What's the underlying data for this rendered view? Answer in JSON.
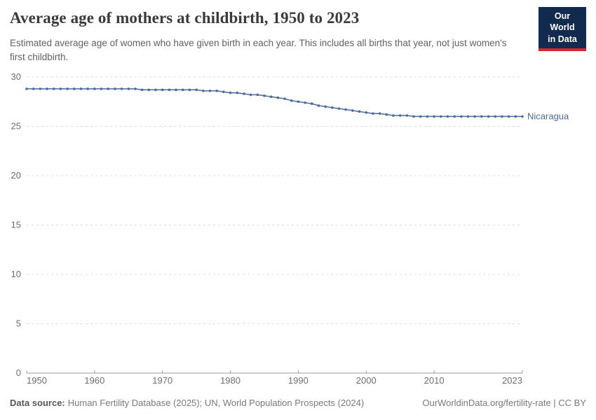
{
  "header": {
    "title": "Average age of mothers at childbirth, 1950 to 2023",
    "subtitle": "Estimated average age of women who have given birth in each year. This includes all births that year, not just women's first childbirth.",
    "logo": {
      "line1": "Our World",
      "line2": "in Data",
      "bg_color": "#112a4e",
      "accent_color": "#d0282e"
    }
  },
  "chart_data": {
    "type": "line",
    "title": "Average age of mothers at childbirth, 1950 to 2023",
    "xlabel": "",
    "ylabel": "",
    "xlim": [
      1950,
      2023
    ],
    "ylim": [
      0,
      30
    ],
    "x_ticks": [
      1950,
      1960,
      1970,
      1980,
      1990,
      2000,
      2010,
      2023
    ],
    "y_ticks": [
      0,
      5,
      10,
      15,
      20,
      25,
      30
    ],
    "grid": "horizontal-dashed",
    "legend_position": "end-of-line-label",
    "end_label": "Nicaragua",
    "series": [
      {
        "name": "Nicaragua",
        "color": "#4C6A9C",
        "years": [
          1950,
          1951,
          1952,
          1953,
          1954,
          1955,
          1956,
          1957,
          1958,
          1959,
          1960,
          1961,
          1962,
          1963,
          1964,
          1965,
          1966,
          1967,
          1968,
          1969,
          1970,
          1971,
          1972,
          1973,
          1974,
          1975,
          1976,
          1977,
          1978,
          1979,
          1980,
          1981,
          1982,
          1983,
          1984,
          1985,
          1986,
          1987,
          1988,
          1989,
          1990,
          1991,
          1992,
          1993,
          1994,
          1995,
          1996,
          1997,
          1998,
          1999,
          2000,
          2001,
          2002,
          2003,
          2004,
          2005,
          2006,
          2007,
          2008,
          2009,
          2010,
          2011,
          2012,
          2013,
          2014,
          2015,
          2016,
          2017,
          2018,
          2019,
          2020,
          2021,
          2022,
          2023
        ],
        "values": [
          28.8,
          28.8,
          28.8,
          28.8,
          28.8,
          28.8,
          28.8,
          28.8,
          28.8,
          28.8,
          28.8,
          28.8,
          28.8,
          28.8,
          28.8,
          28.8,
          28.8,
          28.7,
          28.7,
          28.7,
          28.7,
          28.7,
          28.7,
          28.7,
          28.7,
          28.7,
          28.6,
          28.6,
          28.6,
          28.5,
          28.4,
          28.4,
          28.3,
          28.2,
          28.2,
          28.1,
          28.0,
          27.9,
          27.8,
          27.6,
          27.5,
          27.4,
          27.3,
          27.1,
          27.0,
          26.9,
          26.8,
          26.7,
          26.6,
          26.5,
          26.4,
          26.3,
          26.3,
          26.2,
          26.1,
          26.1,
          26.1,
          26.0,
          26.0,
          26.0,
          26.0,
          26.0,
          26.0,
          26.0,
          26.0,
          26.0,
          26.0,
          26.0,
          26.0,
          26.0,
          26.0,
          26.0,
          26.0,
          26.0
        ]
      }
    ]
  },
  "footer": {
    "datasource_label": "Data source:",
    "datasource_value": "Human Fertility Database (2025); UN, World Population Prospects (2024)",
    "attribution": "OurWorldinData.org/fertility-rate | CC BY"
  }
}
